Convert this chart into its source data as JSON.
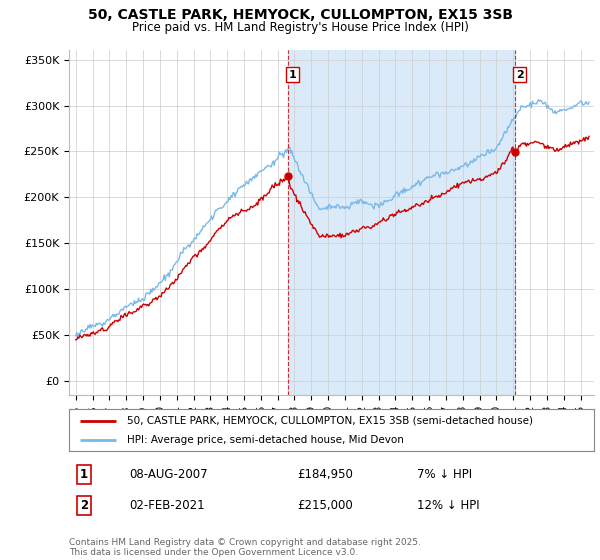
{
  "title": "50, CASTLE PARK, HEMYOCK, CULLOMPTON, EX15 3SB",
  "subtitle": "Price paid vs. HM Land Registry's House Price Index (HPI)",
  "legend_line1": "50, CASTLE PARK, HEMYOCK, CULLOMPTON, EX15 3SB (semi-detached house)",
  "legend_line2": "HPI: Average price, semi-detached house, Mid Devon",
  "sale1_date": "08-AUG-2007",
  "sale1_price": "£184,950",
  "sale1_hpi": "7% ↓ HPI",
  "sale2_date": "02-FEB-2021",
  "sale2_price": "£215,000",
  "sale2_hpi": "12% ↓ HPI",
  "footer": "Contains HM Land Registry data © Crown copyright and database right 2025.\nThis data is licensed under the Open Government Licence v3.0.",
  "hpi_color": "#7ab8e8",
  "price_color": "#cc0000",
  "vline_color": "#cc0000",
  "shade_color": "#daeaf8",
  "sale1_x": 2007.6,
  "sale2_x": 2021.08,
  "ylim_top": 360000,
  "ylim_bottom": -15000,
  "xmin": 1994.6,
  "xmax": 2025.8
}
